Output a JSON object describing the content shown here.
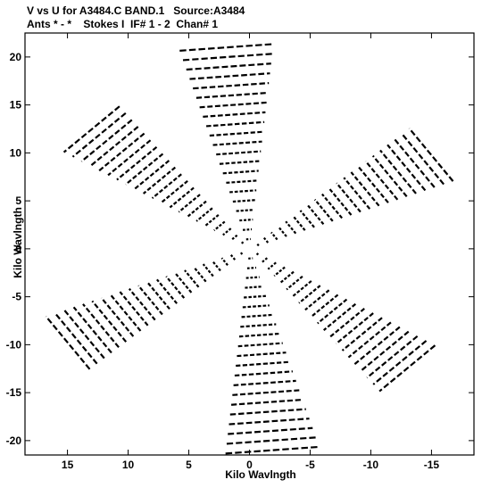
{
  "chart_data": {
    "type": "scatter",
    "title_line_1": "V vs U for A3484.C BAND.1   Source:A3484",
    "title_line_2": "Ants * - *    Stokes I  IF# 1 - 2  Chan# 1",
    "xlabel": "Kilo Wavlngth",
    "ylabel": "Kilo Wavlngth",
    "xlim": [
      18.5,
      -18.5
    ],
    "ylim": [
      -21.5,
      22.5
    ],
    "x_ticks": [
      15,
      10,
      5,
      0,
      -5,
      -10,
      -15
    ],
    "x_tick_labels": [
      "15",
      "10",
      "5",
      "0",
      "-5",
      "-10",
      "-15"
    ],
    "y_ticks": [
      20,
      15,
      10,
      5,
      0,
      -5,
      -10,
      -15,
      -20
    ],
    "y_tick_labels": [
      "20",
      "15",
      "10",
      "5",
      "0",
      "-5",
      "-10",
      "-15",
      "-20"
    ],
    "marker_color": "#000000",
    "arms": [
      {
        "dir": [
          -0.09,
          -1.0
        ],
        "spacing": 1.0,
        "tracks": 21
      },
      {
        "dir": [
          0.72,
          0.69
        ],
        "spacing": 0.86,
        "tracks": 21
      },
      {
        "dir": [
          -0.84,
          0.55
        ],
        "spacing": 0.81,
        "tracks": 22
      }
    ],
    "track_length_fraction": 0.115
  }
}
